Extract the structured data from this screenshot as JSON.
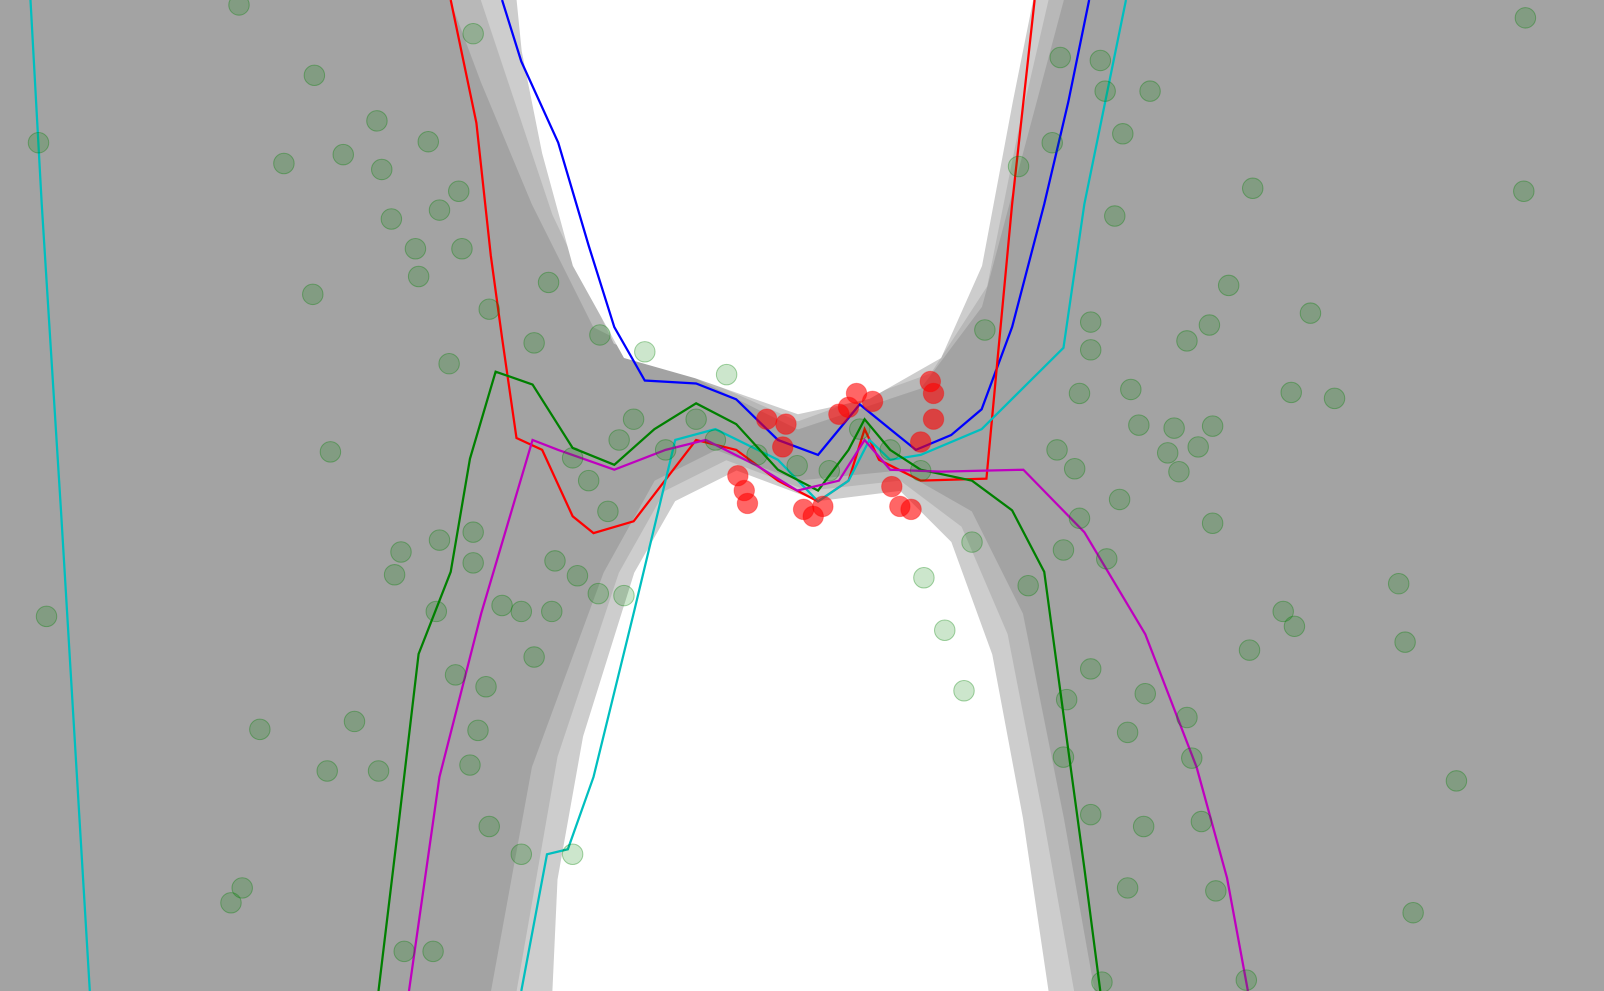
{
  "chart_data": [
    {
      "type": "line",
      "xlim": [
        0,
        100
      ],
      "ylim": [
        0,
        100
      ],
      "series": [
        {
          "color": "#0000ff",
          "x": [
            31.3,
            32.5,
            34.8,
            36.7,
            38.3,
            40.2,
            43.4,
            45.9,
            48.5,
            51.0,
            53.6,
            55.5,
            57.1,
            59.3,
            61.2,
            63.1,
            65.1,
            66.6,
            67.9
          ],
          "values": [
            100,
            93.8,
            85.6,
            75.2,
            67.0,
            61.6,
            61.3,
            59.7,
            55.6,
            54.1,
            59.2,
            56.7,
            54.6,
            56.1,
            58.7,
            67.0,
            79.4,
            89.7,
            100
          ]
        },
        {
          "color": "#ff0000",
          "x": [
            28.1,
            29.7,
            30.6,
            31.3,
            32.2,
            33.8,
            35.7,
            37.0,
            39.5,
            43.4,
            45.9,
            48.5,
            51.0,
            52.9,
            53.9,
            54.8,
            57.4,
            61.5,
            62.2,
            63.1,
            63.8,
            64.5
          ],
          "values": [
            100,
            87.6,
            74.2,
            65.9,
            55.8,
            54.6,
            47.9,
            46.2,
            47.4,
            55.6,
            54.6,
            51.5,
            49.4,
            51.5,
            56.7,
            53.6,
            51.5,
            51.7,
            63.9,
            79.4,
            89.7,
            100
          ]
        },
        {
          "color": "#00bfbf",
          "x": [
            1.9,
            2.6,
            3.8,
            5.6,
            null,
            32.5,
            34.1,
            35.4,
            37.0,
            39.5,
            42.1,
            44.6,
            48.5,
            51.0,
            52.9,
            54.2,
            55.5,
            57.4,
            61.2,
            66.3,
            67.6,
            70.2
          ],
          "values": [
            100,
            79.4,
            48.5,
            0,
            null,
            0,
            13.8,
            14.3,
            21.6,
            38.1,
            55.6,
            56.7,
            53.6,
            49.4,
            51.5,
            55.6,
            53.6,
            54.1,
            56.7,
            64.9,
            79.4,
            100
          ]
        },
        {
          "color": "#008000",
          "x": [
            23.6,
            24.9,
            26.1,
            28.1,
            29.3,
            30.9,
            33.2,
            35.7,
            38.3,
            40.8,
            43.4,
            45.9,
            48.5,
            51.0,
            52.9,
            53.9,
            55.5,
            57.4,
            60.6,
            63.1,
            65.1,
            66.3,
            67.6,
            68.6
          ],
          "values": [
            0,
            17.5,
            34.0,
            42.3,
            53.7,
            62.5,
            61.2,
            54.8,
            53.1,
            56.7,
            59.3,
            57.2,
            52.6,
            50.5,
            54.6,
            57.7,
            54.6,
            52.6,
            51.5,
            48.5,
            42.3,
            27.9,
            12.4,
            0
          ]
        },
        {
          "color": "#bf00bf",
          "x": [
            25.5,
            27.4,
            30.0,
            33.2,
            34.8,
            38.3,
            41.5,
            44.0,
            47.2,
            49.7,
            52.3,
            53.9,
            55.5,
            58.7,
            63.8,
            67.6,
            71.4,
            74.6,
            76.5,
            77.8
          ],
          "values": [
            0,
            21.6,
            38.1,
            55.6,
            54.6,
            52.6,
            54.6,
            55.6,
            53.0,
            50.5,
            51.5,
            55.6,
            52.6,
            52.4,
            52.6,
            46.3,
            36.0,
            22.6,
            11.4,
            0
          ]
        }
      ]
    },
    {
      "type": "scatter",
      "xlim": [
        0,
        100
      ],
      "ylim": [
        0,
        100
      ],
      "series": [
        {
          "color": "#008000",
          "x": [
            14.9,
            2.4,
            19.6,
            23.5,
            17.7,
            21.4,
            26.7,
            23.8,
            28.6,
            24.4,
            27.4,
            25.9,
            28.8,
            26.1,
            19.5,
            29.5,
            30.5,
            34.2,
            28.0,
            33.3,
            37.4,
            40.2,
            45.3,
            20.6,
            2.9,
            16.2,
            22.1,
            20.4,
            23.6,
            14.4,
            15.1,
            25.2,
            27.0,
            30.5,
            32.5,
            35.7,
            29.3,
            29.8,
            30.3,
            28.4,
            33.3,
            27.2,
            24.6,
            25.0,
            27.4,
            29.5,
            29.5,
            31.3,
            32.5,
            34.4,
            34.6,
            36.0,
            37.3,
            38.9,
            37.9,
            36.7,
            35.7,
            38.6,
            39.5,
            41.5,
            43.4,
            44.6,
            47.2,
            49.7,
            51.7,
            53.6,
            55.5,
            57.4,
            57.6,
            58.9,
            60.1,
            60.6,
            61.4,
            63.5,
            65.6,
            66.1,
            68.6,
            68.9,
            70.0,
            71.7,
            69.5,
            78.1,
            95.1,
            95.0,
            76.6,
            81.7,
            75.4,
            74.0,
            68.0,
            68.0,
            70.5,
            67.3,
            80.5,
            83.2,
            71.0,
            73.2,
            75.6,
            74.7,
            72.8,
            73.5,
            69.8,
            75.6,
            65.9,
            67.0,
            67.3,
            69.0,
            66.3,
            64.1,
            87.2,
            87.6,
            80.0,
            80.7,
            77.9,
            68.0,
            71.4,
            74.0,
            70.3,
            74.3,
            90.8,
            68.0,
            71.3,
            74.9,
            70.3,
            75.8,
            88.1,
            77.7,
            68.7,
            66.5,
            66.3
          ],
          "values": [
            99.5,
            85.6,
            92.4,
            87.8,
            83.5,
            84.4,
            85.7,
            82.9,
            80.7,
            77.9,
            78.8,
            74.9,
            74.9,
            72.1,
            70.3,
            96.6,
            68.8,
            71.5,
            63.3,
            65.4,
            66.2,
            64.5,
            62.2,
            54.4,
            37.8,
            26.4,
            27.2,
            22.2,
            22.2,
            8.9,
            10.4,
            4.0,
            4.0,
            16.6,
            13.8,
            13.8,
            22.8,
            26.3,
            30.7,
            31.9,
            33.7,
            38.3,
            42.0,
            44.3,
            45.5,
            46.3,
            43.2,
            38.9,
            38.3,
            38.3,
            43.4,
            41.9,
            40.1,
            39.9,
            48.4,
            51.5,
            53.8,
            55.6,
            57.7,
            54.6,
            57.7,
            55.6,
            54.1,
            53.0,
            52.5,
            56.7,
            54.6,
            52.5,
            41.7,
            36.4,
            30.3,
            45.3,
            66.7,
            83.2,
            85.6,
            94.2,
            93.9,
            90.8,
            86.5,
            90.8,
            78.2,
            81.0,
            98.2,
            80.7,
            71.2,
            68.4,
            67.2,
            65.6,
            67.5,
            64.7,
            60.7,
            60.3,
            60.4,
            59.8,
            57.1,
            56.8,
            57.0,
            54.9,
            54.3,
            52.4,
            49.6,
            47.2,
            54.6,
            52.7,
            47.7,
            43.6,
            44.5,
            40.9,
            41.1,
            35.2,
            38.3,
            36.8,
            34.4,
            32.5,
            30.0,
            27.6,
            26.1,
            23.5,
            21.2,
            17.8,
            16.6,
            17.1,
            10.4,
            10.1,
            7.9,
            1.1,
            0.9,
            29.4,
            23.6
          ]
        },
        {
          "color": "#ff0000",
          "x": [
            47.8,
            49.0,
            48.8,
            53.4,
            52.9,
            54.4,
            58.0,
            58.2,
            58.2,
            57.4,
            46.0,
            46.4,
            46.6,
            50.1,
            50.7,
            51.3,
            56.1,
            56.8,
            55.6,
            52.3
          ],
          "values": [
            57.7,
            57.2,
            54.9,
            60.3,
            58.9,
            59.5,
            61.5,
            60.3,
            57.7,
            55.4,
            52.0,
            50.5,
            49.2,
            48.6,
            47.9,
            48.9,
            48.9,
            48.6,
            50.9,
            58.2
          ]
        }
      ]
    }
  ]
}
